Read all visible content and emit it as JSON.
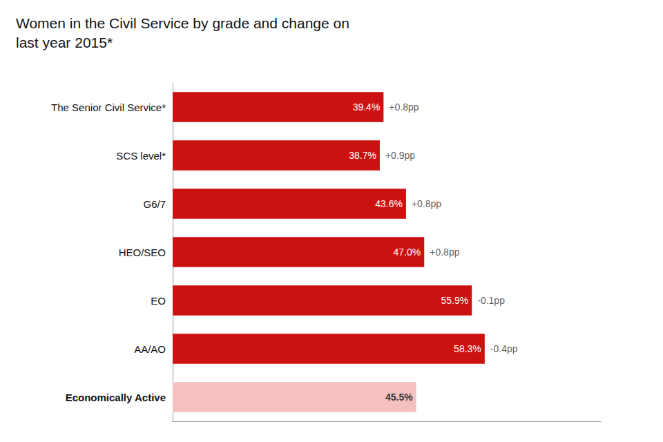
{
  "chart_data": {
    "type": "bar",
    "orientation": "horizontal",
    "title": "Women in the Civil Service by grade and change on\nlast year 2015*",
    "categories": [
      "The Senior Civil Service*",
      "SCS level*",
      "G6/7",
      "HEO/SEO",
      "EO",
      "AA/AO",
      "Economically Active"
    ],
    "values": [
      39.4,
      38.7,
      43.6,
      47.0,
      55.9,
      58.3,
      45.5
    ],
    "value_labels": [
      "39.4%",
      "38.7%",
      "43.6%",
      "47.0%",
      "55.9%",
      "58.3%",
      "45.5%"
    ],
    "annotations": [
      "+0.8pp",
      "+0.9pp",
      "+0.8pp",
      "+0.8pp",
      "-0.1pp",
      "-0.4pp",
      null
    ],
    "colors": [
      "#cc1111",
      "#cc1111",
      "#cc1111",
      "#cc1111",
      "#cc1111",
      "#cc1111",
      "#f5c0c0"
    ],
    "xlim": [
      0,
      80
    ],
    "data_labels": true,
    "tick_labels": "y",
    "grid": false
  }
}
